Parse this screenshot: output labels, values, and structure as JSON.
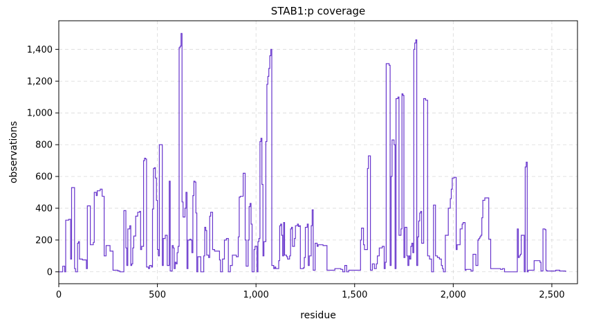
{
  "chart_data": {
    "type": "line",
    "title": "STAB1:p coverage",
    "xlabel": "residue",
    "ylabel": "observations",
    "xlim": [
      0,
      2630
    ],
    "ylim": [
      -75,
      1580
    ],
    "xticks": [
      0,
      500,
      1000,
      1500,
      2000,
      2500
    ],
    "xtick_labels": [
      "0",
      "500",
      "1,000",
      "1,500",
      "2,000",
      "2,500"
    ],
    "yticks": [
      0,
      200,
      400,
      600,
      800,
      1000,
      1200,
      1400
    ],
    "ytick_labels": [
      "0",
      "200",
      "400",
      "600",
      "800",
      "1,000",
      "1,200",
      "1,400"
    ],
    "grid": true,
    "line_color": "#6633cc",
    "series": [
      {
        "name": "",
        "steps": [
          [
            0,
            0
          ],
          [
            20,
            35
          ],
          [
            30,
            0
          ],
          [
            35,
            325
          ],
          [
            50,
            330
          ],
          [
            60,
            80
          ],
          [
            65,
            530
          ],
          [
            80,
            20
          ],
          [
            85,
            0
          ],
          [
            95,
            180
          ],
          [
            100,
            190
          ],
          [
            105,
            80
          ],
          [
            120,
            75
          ],
          [
            140,
            20
          ],
          [
            145,
            415
          ],
          [
            160,
            170
          ],
          [
            175,
            185
          ],
          [
            180,
            500
          ],
          [
            190,
            480
          ],
          [
            195,
            510
          ],
          [
            210,
            520
          ],
          [
            220,
            475
          ],
          [
            230,
            100
          ],
          [
            240,
            165
          ],
          [
            260,
            130
          ],
          [
            270,
            130
          ],
          [
            275,
            10
          ],
          [
            300,
            5
          ],
          [
            310,
            0
          ],
          [
            320,
            0
          ],
          [
            330,
            385
          ],
          [
            340,
            150
          ],
          [
            345,
            40
          ],
          [
            350,
            270
          ],
          [
            360,
            290
          ],
          [
            365,
            40
          ],
          [
            370,
            50
          ],
          [
            375,
            150
          ],
          [
            380,
            225
          ],
          [
            390,
            350
          ],
          [
            400,
            375
          ],
          [
            410,
            380
          ],
          [
            415,
            140
          ],
          [
            420,
            160
          ],
          [
            430,
            700
          ],
          [
            435,
            715
          ],
          [
            440,
            710
          ],
          [
            445,
            30
          ],
          [
            455,
            20
          ],
          [
            460,
            40
          ],
          [
            470,
            30
          ],
          [
            475,
            395
          ],
          [
            480,
            650
          ],
          [
            485,
            655
          ],
          [
            490,
            590
          ],
          [
            495,
            450
          ],
          [
            500,
            140
          ],
          [
            505,
            100
          ],
          [
            510,
            800
          ],
          [
            520,
            800
          ],
          [
            525,
            40
          ],
          [
            530,
            210
          ],
          [
            540,
            230
          ],
          [
            550,
            40
          ],
          [
            560,
            570
          ],
          [
            565,
            5
          ],
          [
            575,
            165
          ],
          [
            580,
            150
          ],
          [
            585,
            20
          ],
          [
            590,
            60
          ],
          [
            595,
            50
          ],
          [
            600,
            120
          ],
          [
            605,
            160
          ],
          [
            610,
            1410
          ],
          [
            615,
            1420
          ],
          [
            620,
            1500
          ],
          [
            625,
            440
          ],
          [
            630,
            345
          ],
          [
            640,
            400
          ],
          [
            645,
            500
          ],
          [
            650,
            20
          ],
          [
            655,
            200
          ],
          [
            665,
            205
          ],
          [
            670,
            200
          ],
          [
            675,
            120
          ],
          [
            680,
            480
          ],
          [
            685,
            570
          ],
          [
            690,
            565
          ],
          [
            695,
            370
          ],
          [
            700,
            0
          ],
          [
            705,
            95
          ],
          [
            720,
            0
          ],
          [
            735,
            100
          ],
          [
            740,
            280
          ],
          [
            745,
            260
          ],
          [
            750,
            105
          ],
          [
            760,
            90
          ],
          [
            765,
            350
          ],
          [
            770,
            375
          ],
          [
            780,
            140
          ],
          [
            790,
            130
          ],
          [
            810,
            130
          ],
          [
            815,
            75
          ],
          [
            820,
            0
          ],
          [
            830,
            80
          ],
          [
            840,
            200
          ],
          [
            850,
            210
          ],
          [
            855,
            210
          ],
          [
            860,
            0
          ],
          [
            870,
            40
          ],
          [
            880,
            105
          ],
          [
            900,
            95
          ],
          [
            910,
            220
          ],
          [
            915,
            470
          ],
          [
            920,
            475
          ],
          [
            925,
            475
          ],
          [
            930,
            475
          ],
          [
            935,
            620
          ],
          [
            940,
            620
          ],
          [
            945,
            200
          ],
          [
            950,
            35
          ],
          [
            960,
            200
          ],
          [
            965,
            410
          ],
          [
            970,
            430
          ],
          [
            975,
            300
          ],
          [
            980,
            0
          ],
          [
            990,
            140
          ],
          [
            995,
            160
          ],
          [
            1005,
            0
          ],
          [
            1010,
            190
          ],
          [
            1015,
            210
          ],
          [
            1020,
            820
          ],
          [
            1025,
            840
          ],
          [
            1030,
            550
          ],
          [
            1035,
            100
          ],
          [
            1040,
            190
          ],
          [
            1050,
            820
          ],
          [
            1055,
            1180
          ],
          [
            1060,
            1230
          ],
          [
            1065,
            1280
          ],
          [
            1070,
            1360
          ],
          [
            1075,
            1400
          ],
          [
            1080,
            40
          ],
          [
            1090,
            20
          ],
          [
            1095,
            30
          ],
          [
            1100,
            20
          ],
          [
            1110,
            20
          ],
          [
            1115,
            70
          ],
          [
            1120,
            290
          ],
          [
            1125,
            300
          ],
          [
            1130,
            230
          ],
          [
            1135,
            100
          ],
          [
            1140,
            310
          ],
          [
            1145,
            105
          ],
          [
            1155,
            95
          ],
          [
            1160,
            80
          ],
          [
            1170,
            100
          ],
          [
            1175,
            270
          ],
          [
            1180,
            280
          ],
          [
            1185,
            160
          ],
          [
            1195,
            210
          ],
          [
            1200,
            290
          ],
          [
            1210,
            300
          ],
          [
            1215,
            285
          ],
          [
            1220,
            290
          ],
          [
            1225,
            20
          ],
          [
            1240,
            25
          ],
          [
            1245,
            90
          ],
          [
            1250,
            280
          ],
          [
            1260,
            300
          ],
          [
            1265,
            40
          ],
          [
            1270,
            100
          ],
          [
            1280,
            290
          ],
          [
            1285,
            390
          ],
          [
            1290,
            10
          ],
          [
            1300,
            180
          ],
          [
            1310,
            160
          ],
          [
            1315,
            170
          ],
          [
            1340,
            165
          ],
          [
            1360,
            10
          ],
          [
            1400,
            20
          ],
          [
            1430,
            15
          ],
          [
            1440,
            0
          ],
          [
            1450,
            40
          ],
          [
            1460,
            0
          ],
          [
            1470,
            10
          ],
          [
            1530,
            200
          ],
          [
            1535,
            275
          ],
          [
            1545,
            170
          ],
          [
            1550,
            140
          ],
          [
            1565,
            650
          ],
          [
            1570,
            730
          ],
          [
            1580,
            10
          ],
          [
            1590,
            50
          ],
          [
            1600,
            20
          ],
          [
            1610,
            50
          ],
          [
            1615,
            100
          ],
          [
            1625,
            150
          ],
          [
            1640,
            160
          ],
          [
            1650,
            20
          ],
          [
            1655,
            60
          ],
          [
            1660,
            1310
          ],
          [
            1675,
            1300
          ],
          [
            1680,
            40
          ],
          [
            1685,
            600
          ],
          [
            1690,
            830
          ],
          [
            1700,
            800
          ],
          [
            1705,
            20
          ],
          [
            1710,
            1090
          ],
          [
            1720,
            1100
          ],
          [
            1725,
            230
          ],
          [
            1735,
            270
          ],
          [
            1740,
            1120
          ],
          [
            1745,
            1110
          ],
          [
            1750,
            90
          ],
          [
            1755,
            280
          ],
          [
            1765,
            100
          ],
          [
            1770,
            40
          ],
          [
            1775,
            100
          ],
          [
            1780,
            80
          ],
          [
            1785,
            160
          ],
          [
            1790,
            180
          ],
          [
            1795,
            120
          ],
          [
            1800,
            1400
          ],
          [
            1805,
            1440
          ],
          [
            1810,
            1460
          ],
          [
            1815,
            40
          ],
          [
            1820,
            220
          ],
          [
            1825,
            320
          ],
          [
            1830,
            370
          ],
          [
            1835,
            380
          ],
          [
            1840,
            180
          ],
          [
            1850,
            1090
          ],
          [
            1860,
            1080
          ],
          [
            1870,
            100
          ],
          [
            1880,
            80
          ],
          [
            1890,
            0
          ],
          [
            1900,
            420
          ],
          [
            1910,
            100
          ],
          [
            1920,
            90
          ],
          [
            1930,
            80
          ],
          [
            1940,
            40
          ],
          [
            1945,
            20
          ],
          [
            1950,
            0
          ],
          [
            1960,
            230
          ],
          [
            1975,
            400
          ],
          [
            1985,
            460
          ],
          [
            1990,
            520
          ],
          [
            1995,
            590
          ],
          [
            2005,
            595
          ],
          [
            2015,
            140
          ],
          [
            2020,
            170
          ],
          [
            2035,
            270
          ],
          [
            2045,
            300
          ],
          [
            2050,
            310
          ],
          [
            2060,
            10
          ],
          [
            2065,
            15
          ],
          [
            2090,
            5
          ],
          [
            2100,
            110
          ],
          [
            2110,
            110
          ],
          [
            2115,
            40
          ],
          [
            2125,
            200
          ],
          [
            2130,
            210
          ],
          [
            2135,
            220
          ],
          [
            2140,
            230
          ],
          [
            2145,
            340
          ],
          [
            2150,
            450
          ],
          [
            2160,
            465
          ],
          [
            2180,
            205
          ],
          [
            2190,
            20
          ],
          [
            2210,
            20
          ],
          [
            2240,
            15
          ],
          [
            2250,
            20
          ],
          [
            2260,
            0
          ],
          [
            2320,
            0
          ],
          [
            2325,
            270
          ],
          [
            2330,
            90
          ],
          [
            2335,
            100
          ],
          [
            2340,
            110
          ],
          [
            2345,
            230
          ],
          [
            2360,
            0
          ],
          [
            2365,
            660
          ],
          [
            2370,
            690
          ],
          [
            2375,
            0
          ],
          [
            2380,
            10
          ],
          [
            2410,
            70
          ],
          [
            2440,
            60
          ],
          [
            2445,
            5
          ],
          [
            2455,
            270
          ],
          [
            2465,
            265
          ],
          [
            2470,
            10
          ],
          [
            2475,
            5
          ],
          [
            2500,
            5
          ],
          [
            2520,
            10
          ],
          [
            2540,
            5
          ],
          [
            2560,
            5
          ],
          [
            2570,
            0
          ]
        ]
      }
    ]
  }
}
